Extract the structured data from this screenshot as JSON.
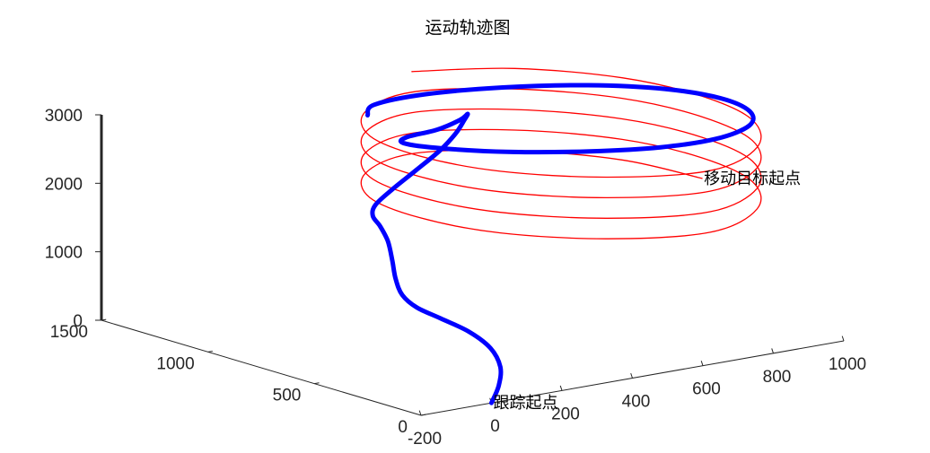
{
  "chart_data": {
    "type": "line3d",
    "title": "运动轨迹图",
    "xlabel": "",
    "ylabel": "",
    "zlabel": "",
    "x_ticks": [
      "-200",
      "0",
      "200",
      "400",
      "600",
      "800",
      "1000"
    ],
    "y_ticks": [
      "0",
      "500",
      "1000",
      "1500"
    ],
    "z_ticks": [
      "0",
      "1000",
      "2000",
      "3000"
    ],
    "xlim": [
      -200,
      1000
    ],
    "ylim": [
      0,
      1500
    ],
    "zlim": [
      0,
      3000
    ],
    "grid": false,
    "legend": "none",
    "annotations": [
      {
        "text": "移动目标起点",
        "x": 900,
        "y": 500,
        "z": 2000
      },
      {
        "text": "跟踪起点",
        "x": 0,
        "y": 0,
        "z": 0
      }
    ],
    "series": [
      {
        "color": "#ff0000",
        "style": "thin",
        "points": [
          [
            900,
            500,
            2000
          ],
          [
            858,
            806,
            2025
          ],
          [
            712,
            1069,
            2050
          ],
          [
            500,
            1200,
            2075
          ],
          [
            288,
            1069,
            2100
          ],
          [
            142,
            806,
            2125
          ],
          [
            100,
            500,
            2150
          ],
          [
            142,
            194,
            2175
          ],
          [
            288,
            -69,
            2200
          ],
          [
            500,
            -200,
            2225
          ],
          [
            712,
            -69,
            2250
          ],
          [
            858,
            194,
            2275
          ],
          [
            900,
            500,
            2300
          ],
          [
            858,
            806,
            2325
          ],
          [
            712,
            1069,
            2350
          ],
          [
            500,
            1200,
            2375
          ],
          [
            288,
            1069,
            2400
          ],
          [
            142,
            806,
            2425
          ],
          [
            100,
            500,
            2450
          ],
          [
            142,
            194,
            2475
          ],
          [
            288,
            -69,
            2500
          ],
          [
            500,
            -200,
            2525
          ],
          [
            712,
            -69,
            2550
          ],
          [
            858,
            194,
            2575
          ],
          [
            900,
            500,
            2600
          ],
          [
            858,
            806,
            2625
          ],
          [
            712,
            1069,
            2650
          ],
          [
            500,
            1200,
            2675
          ],
          [
            288,
            1069,
            2700
          ],
          [
            142,
            806,
            2725
          ],
          [
            100,
            500,
            2750
          ],
          [
            142,
            194,
            2775
          ],
          [
            288,
            -69,
            2800
          ],
          [
            500,
            -200,
            2825
          ],
          [
            712,
            -69,
            2850
          ],
          [
            858,
            194,
            2875
          ],
          [
            900,
            500,
            2900
          ],
          [
            858,
            806,
            2925
          ],
          [
            712,
            1069,
            2950
          ],
          [
            500,
            1200,
            2975
          ],
          [
            288,
            1069,
            3000
          ],
          [
            142,
            806,
            3025
          ],
          [
            100,
            500,
            3050
          ],
          [
            142,
            194,
            3075
          ],
          [
            288,
            -69,
            3100
          ],
          [
            500,
            -200,
            3125
          ],
          [
            712,
            -69,
            3150
          ],
          [
            858,
            194,
            3175
          ],
          [
            900,
            500,
            3200
          ],
          [
            858,
            806,
            3225
          ],
          [
            712,
            1069,
            3250
          ],
          [
            500,
            1200,
            3275
          ]
        ]
      },
      {
        "color": "#0000ff",
        "style": "thick",
        "points": [
          [
            0,
            0,
            0
          ],
          [
            53,
            54,
            150
          ],
          [
            108,
            137,
            300
          ],
          [
            142,
            240,
            450
          ],
          [
            141,
            341,
            600
          ],
          [
            108,
            418,
            750
          ],
          [
            70,
            467,
            900
          ],
          [
            57,
            513,
            1050
          ],
          [
            81,
            584,
            1200
          ],
          [
            128,
            678,
            1350
          ],
          [
            170,
            768,
            1500
          ],
          [
            183,
            825,
            1650
          ],
          [
            171,
            840,
            1800
          ],
          [
            180,
            842,
            1950
          ],
          [
            242,
            865,
            2100
          ],
          [
            338,
            912,
            2250
          ],
          [
            434,
            961,
            2400
          ],
          [
            505,
            1003,
            2550
          ],
          [
            539,
            1019,
            2700
          ],
          [
            520,
            972,
            2850
          ],
          [
            430,
            858,
            2950
          ],
          [
            305,
            760,
            3010
          ],
          [
            185,
            705,
            3060
          ],
          [
            128,
            622,
            3100
          ],
          [
            150,
            475,
            3140
          ],
          [
            240,
            300,
            3170
          ],
          [
            370,
            150,
            3200
          ],
          [
            510,
            50,
            3225
          ],
          [
            650,
            20,
            3250
          ],
          [
            780,
            80,
            3270
          ],
          [
            860,
            210,
            3285
          ],
          [
            880,
            380,
            3300
          ],
          [
            830,
            560,
            3315
          ],
          [
            710,
            720,
            3330
          ],
          [
            540,
            840,
            3340
          ],
          [
            360,
            900,
            3350
          ],
          [
            200,
            880,
            3360
          ],
          [
            120,
            780,
            3370
          ]
        ]
      }
    ]
  }
}
